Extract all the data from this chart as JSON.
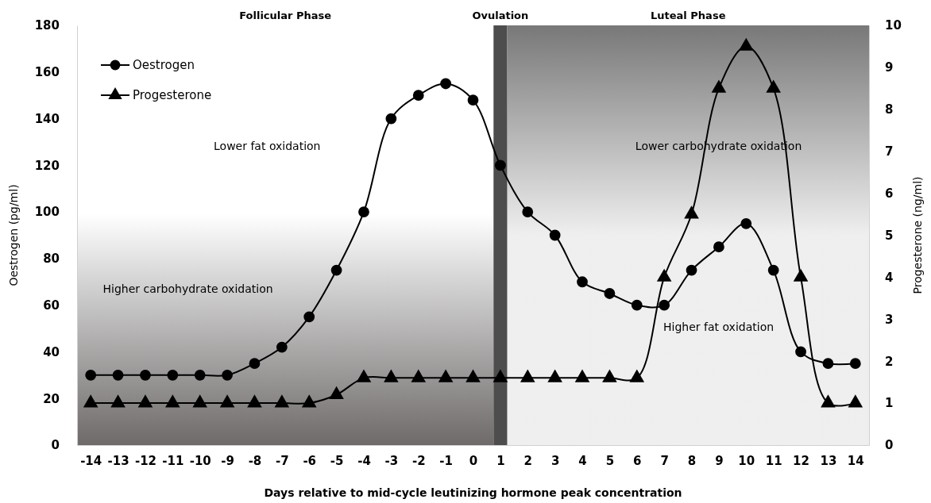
{
  "chart_data": {
    "type": "line",
    "xlabel": "Days relative to mid-cycle leutinizing hormone peak concentration",
    "ylabel": "Oestrogen  (pg/ml)",
    "y2label": "Progesterone (ng/ml)",
    "x": [
      -14,
      -13,
      -12,
      -11,
      -10,
      -9,
      -8,
      -7,
      -6,
      -5,
      -4,
      -3,
      -2,
      -1,
      0,
      1,
      2,
      3,
      4,
      5,
      6,
      7,
      8,
      9,
      10,
      11,
      12,
      13,
      14
    ],
    "xlim": [
      -14.5,
      14.5
    ],
    "xticks": [
      -14,
      -13,
      -12,
      -11,
      -10,
      -9,
      -8,
      -7,
      -6,
      -5,
      -4,
      -3,
      -2,
      -1,
      0,
      1,
      2,
      3,
      4,
      5,
      6,
      7,
      8,
      9,
      10,
      11,
      12,
      13,
      14
    ],
    "ylim": [
      0,
      180
    ],
    "yticks": [
      0,
      20,
      40,
      60,
      80,
      100,
      120,
      140,
      160,
      180
    ],
    "y2lim": [
      0,
      10
    ],
    "y2ticks": [
      0,
      1,
      2,
      3,
      4,
      5,
      6,
      7,
      8,
      9,
      10
    ],
    "series": [
      {
        "name": "Oestrogen",
        "color": "#000000",
        "marker": "circle",
        "values": [
          30,
          30,
          30,
          30,
          30,
          30,
          35,
          42,
          55,
          75,
          100,
          140,
          150,
          155,
          148,
          120,
          100,
          90,
          70,
          65,
          60,
          60,
          75,
          85,
          95,
          75,
          40,
          35,
          35
        ]
      },
      {
        "name": "Progesterone",
        "color": "#000000",
        "marker": "triangle",
        "axis": "y2",
        "values": [
          1,
          1,
          1,
          1,
          1,
          1,
          1,
          1,
          1,
          1.2,
          1.6,
          1.6,
          1.6,
          1.6,
          1.6,
          1.6,
          1.6,
          1.6,
          1.6,
          1.6,
          1.6,
          4,
          5.5,
          8.5,
          9.5,
          8.5,
          4,
          1,
          1
        ]
      }
    ],
    "bands": [
      {
        "axis": "x",
        "from": -14.5,
        "to": 0.75,
        "label": "Follicular Phase",
        "color": "#6e6a6a"
      },
      {
        "axis": "x",
        "from": 0.75,
        "to": 1.25,
        "label": "Ovulation",
        "color": "#4d4d4d"
      },
      {
        "axis": "x",
        "from": 1.25,
        "to": 14.5,
        "label": "Luteal Phase",
        "color": "#787878"
      }
    ],
    "annotations": [
      "Lower fat oxidation",
      "Higher carbohydrate oxidation",
      "Lower carbohydrate oxidation",
      "Higher fat oxidation"
    ],
    "legend": "top left",
    "line_style": "solid",
    "grid": false
  }
}
